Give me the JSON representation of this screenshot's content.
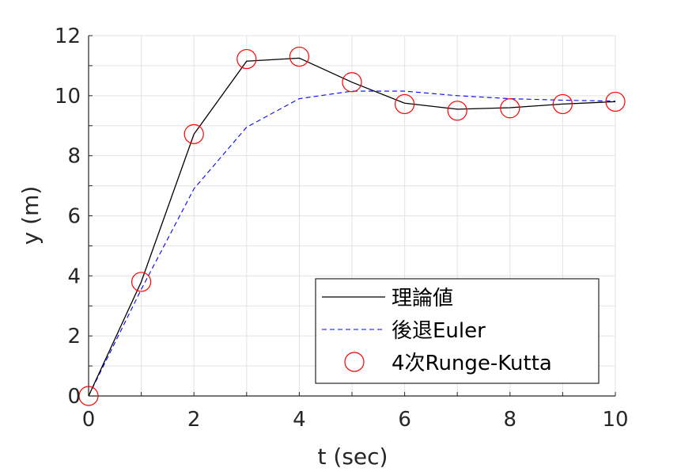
{
  "chart_data": {
    "type": "line",
    "xlabel": "t (sec)",
    "ylabel": "y (m)",
    "xlim": [
      0,
      10
    ],
    "ylim": [
      0,
      12
    ],
    "xticks": [
      "0",
      "2",
      "4",
      "6",
      "8",
      "10"
    ],
    "yticks": [
      "0",
      "2",
      "4",
      "6",
      "8",
      "10",
      "12"
    ],
    "grid": true,
    "legend_position": "bottom-right",
    "x": [
      0,
      1,
      2,
      3,
      4,
      5,
      6,
      7,
      8,
      9,
      10
    ],
    "series": [
      {
        "name": "理論値",
        "style": "solid line",
        "color": "#000000",
        "values": [
          0,
          3.8,
          8.72,
          11.15,
          11.25,
          10.45,
          9.75,
          9.55,
          9.6,
          9.72,
          9.8
        ]
      },
      {
        "name": "後退Euler",
        "style": "dashed line",
        "color": "#0000ff",
        "values": [
          0,
          3.55,
          6.9,
          8.95,
          9.9,
          10.15,
          10.15,
          10.0,
          9.9,
          9.85,
          9.82
        ]
      },
      {
        "name": "4次Runge-Kutta",
        "style": "circle markers",
        "color": "#ff0000",
        "values": [
          0,
          3.8,
          8.72,
          11.22,
          11.3,
          10.45,
          9.72,
          9.5,
          9.58,
          9.72,
          9.8
        ]
      }
    ]
  }
}
